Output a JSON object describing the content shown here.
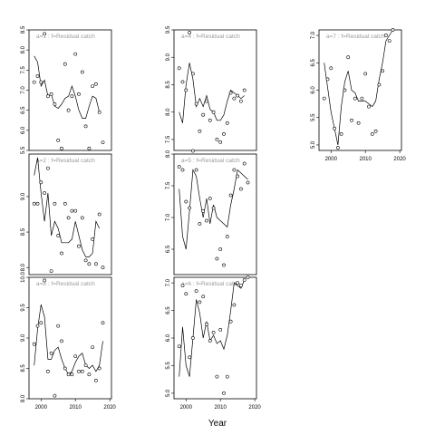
{
  "chart_data": {
    "type": "line",
    "xlabel": "Year",
    "panels": [
      {
        "title": "a=1  :  f=Residual catch",
        "ylim": [
          5.5,
          8.5
        ],
        "yticks": [
          5.5,
          6.0,
          6.5,
          7.0,
          7.5,
          8.0,
          8.5
        ],
        "xticks": [],
        "x": [
          1998,
          1999,
          2000,
          2001,
          2002,
          2003,
          2004,
          2005,
          2006,
          2007,
          2008,
          2009,
          2010,
          2011,
          2012,
          2013,
          2014,
          2015,
          2016,
          2017,
          2018,
          2019
        ],
        "fit": [
          7.85,
          7.7,
          7.1,
          7.25,
          6.85,
          6.9,
          6.6,
          6.55,
          6.65,
          6.8,
          6.85,
          7.1,
          6.85,
          6.5,
          6.3,
          6.3,
          6.6,
          6.85,
          6.8,
          6.45,
          null,
          null
        ],
        "points": [
          [
            1998,
            7.2
          ],
          [
            1999,
            7.35
          ],
          [
            2000,
            7.2
          ],
          [
            2001,
            8.4
          ],
          [
            2002,
            6.85
          ],
          [
            2003,
            6.9
          ],
          [
            2004,
            6.65
          ],
          [
            2005,
            5.75
          ],
          [
            2006,
            5.55
          ],
          [
            2007,
            7.65
          ],
          [
            2008,
            6.5
          ],
          [
            2009,
            6.85
          ],
          [
            2010,
            7.9
          ],
          [
            2011,
            6.9
          ],
          [
            2012,
            7.45
          ],
          [
            2013,
            6.1
          ],
          [
            2014,
            5.55
          ],
          [
            2015,
            7.1
          ],
          [
            2016,
            7.15
          ],
          [
            2017,
            6.45
          ],
          [
            2018,
            5.7
          ]
        ]
      },
      {
        "title": "a=4  :  f=Residual catch",
        "ylim": [
          7.3,
          9.5
        ],
        "yticks": [
          7.5,
          8.0,
          8.5,
          9.0,
          9.5
        ],
        "xticks": [],
        "x": [
          1998,
          1999,
          2000,
          2001,
          2002,
          2003,
          2004,
          2005,
          2006,
          2007,
          2008,
          2009,
          2010,
          2011,
          2012,
          2013,
          2014,
          2015,
          2016,
          2017,
          2018,
          2019
        ],
        "fit": [
          8.0,
          7.8,
          8.5,
          8.9,
          8.6,
          8.1,
          8.25,
          8.1,
          8.3,
          8.05,
          8.0,
          7.85,
          7.85,
          7.95,
          8.2,
          8.4,
          8.35,
          8.3,
          8.25,
          8.3,
          null,
          null
        ],
        "points": [
          [
            1998,
            8.8
          ],
          [
            1999,
            8.55
          ],
          [
            2000,
            8.4
          ],
          [
            2001,
            9.45
          ],
          [
            2002,
            8.7
          ],
          [
            2003,
            8.15
          ],
          [
            2004,
            7.65
          ],
          [
            2005,
            7.95
          ],
          [
            2006,
            8.2
          ],
          [
            2007,
            7.85
          ],
          [
            2008,
            8.0
          ],
          [
            2009,
            7.5
          ],
          [
            2010,
            7.45
          ],
          [
            2011,
            7.6
          ],
          [
            2012,
            7.8
          ],
          [
            2013,
            8.35
          ],
          [
            2014,
            8.25
          ],
          [
            2015,
            8.3
          ],
          [
            2016,
            8.2
          ],
          [
            2017,
            8.4
          ]
        ]
      },
      {
        "title": "a=7  :  f=Residual catch",
        "ylim": [
          4.9,
          7.1
        ],
        "yticks": [
          5.0,
          5.5,
          6.0,
          6.5,
          7.0
        ],
        "xticks": [
          2000,
          2010,
          2020
        ],
        "x": [
          1998,
          1999,
          2000,
          2001,
          2002,
          2003,
          2004,
          2005,
          2006,
          2007,
          2008,
          2009,
          2010,
          2011,
          2012,
          2013,
          2014,
          2015,
          2016,
          2017,
          2018,
          2019
        ],
        "fit": [
          6.5,
          6.05,
          5.6,
          5.3,
          5.0,
          5.7,
          6.15,
          6.35,
          6.0,
          5.95,
          5.8,
          5.8,
          5.8,
          5.75,
          5.7,
          5.8,
          6.2,
          6.5,
          6.9,
          7.0,
          7.1,
          null
        ],
        "points": [
          [
            1998,
            5.85
          ],
          [
            1999,
            6.2
          ],
          [
            2000,
            6.4
          ],
          [
            2001,
            5.3
          ],
          [
            2002,
            4.95
          ],
          [
            2003,
            5.2
          ],
          [
            2004,
            6.0
          ],
          [
            2005,
            6.6
          ],
          [
            2006,
            5.45
          ],
          [
            2007,
            5.85
          ],
          [
            2008,
            5.4
          ],
          [
            2009,
            5.85
          ],
          [
            2010,
            6.3
          ],
          [
            2011,
            5.7
          ],
          [
            2012,
            5.2
          ],
          [
            2013,
            5.25
          ],
          [
            2014,
            6.1
          ],
          [
            2015,
            6.35
          ],
          [
            2016,
            7.0
          ],
          [
            2017,
            6.9
          ],
          [
            2018,
            7.1
          ]
        ]
      },
      {
        "title": "a=2  :  f=Residual catch",
        "ylim": [
          7.9,
          9.6
        ],
        "yticks": [
          8.0,
          8.5,
          9.0
        ],
        "xticks": [],
        "x": [
          1998,
          1999,
          2000,
          2001,
          2002,
          2003,
          2004,
          2005,
          2006,
          2007,
          2008,
          2009,
          2010,
          2011,
          2012,
          2013,
          2014,
          2015,
          2016,
          2017,
          2018,
          2019
        ],
        "fit": [
          9.3,
          9.55,
          9.05,
          8.65,
          9.05,
          8.45,
          8.65,
          8.55,
          8.35,
          8.35,
          8.35,
          8.4,
          8.65,
          8.45,
          8.25,
          8.15,
          8.15,
          8.2,
          8.65,
          8.55,
          null,
          null
        ],
        "points": [
          [
            1998,
            8.9
          ],
          [
            1999,
            8.9
          ],
          [
            2000,
            9.2
          ],
          [
            2001,
            9.05
          ],
          [
            2002,
            9.4
          ],
          [
            2003,
            7.95
          ],
          [
            2004,
            8.9
          ],
          [
            2005,
            8.45
          ],
          [
            2006,
            8.2
          ],
          [
            2007,
            8.9
          ],
          [
            2008,
            8.7
          ],
          [
            2009,
            8.8
          ],
          [
            2010,
            8.8
          ],
          [
            2011,
            8.3
          ],
          [
            2012,
            8.7
          ],
          [
            2013,
            8.1
          ],
          [
            2014,
            8.05
          ],
          [
            2015,
            8.4
          ],
          [
            2016,
            8.05
          ],
          [
            2017,
            8.75
          ],
          [
            2018,
            8.0
          ]
        ]
      },
      {
        "title": "a=5  :  f=Residual catch",
        "ylim": [
          6.1,
          8.0
        ],
        "yticks": [
          6.5,
          7.0,
          7.5,
          8.0
        ],
        "xticks": [],
        "x": [
          1998,
          1999,
          2000,
          2001,
          2002,
          2003,
          2004,
          2005,
          2006,
          2007,
          2008,
          2009,
          2010,
          2011,
          2012,
          2013,
          2014,
          2015,
          2016,
          2017,
          2018,
          2019
        ],
        "fit": [
          7.45,
          6.7,
          6.5,
          7.1,
          7.75,
          7.65,
          7.3,
          7.0,
          7.3,
          6.9,
          7.2,
          7.0,
          6.95,
          6.9,
          6.85,
          7.2,
          7.45,
          7.75,
          7.7,
          7.65,
          7.6,
          null
        ],
        "points": [
          [
            1998,
            7.8
          ],
          [
            1999,
            7.75
          ],
          [
            2000,
            7.25
          ],
          [
            2001,
            7.15
          ],
          [
            2002,
            8.05
          ],
          [
            2003,
            7.75
          ],
          [
            2004,
            6.9
          ],
          [
            2005,
            7.1
          ],
          [
            2006,
            6.95
          ],
          [
            2007,
            7.3
          ],
          [
            2008,
            7.15
          ],
          [
            2009,
            6.35
          ],
          [
            2010,
            6.5
          ],
          [
            2011,
            6.25
          ],
          [
            2012,
            6.7
          ],
          [
            2013,
            7.35
          ],
          [
            2014,
            7.75
          ],
          [
            2015,
            7.65
          ],
          [
            2016,
            7.45
          ],
          [
            2017,
            7.85
          ],
          [
            2018,
            7.55
          ]
        ]
      },
      {
        "title": "a=8  :  f=Residual catch",
        "ylim": [
          8.0,
          10.0
        ],
        "yticks": [
          8.0,
          8.5,
          9.0,
          9.5,
          10.0
        ],
        "xticks": [
          2000,
          2010,
          2020
        ],
        "x": [
          1998,
          1999,
          2000,
          2001,
          2002,
          2003,
          2004,
          2005,
          2006,
          2007,
          2008,
          2009,
          2010,
          2011,
          2012,
          2013,
          2014,
          2015,
          2016,
          2017,
          2018,
          2019
        ],
        "fit": [
          8.55,
          9.15,
          9.55,
          9.35,
          8.65,
          8.65,
          8.8,
          8.85,
          8.65,
          8.5,
          8.4,
          8.45,
          8.6,
          8.7,
          8.75,
          8.55,
          8.5,
          8.55,
          8.45,
          8.55,
          8.95,
          null
        ],
        "points": [
          [
            1998,
            8.9
          ],
          [
            1999,
            9.2
          ],
          [
            2000,
            9.25
          ],
          [
            2001,
            9.95
          ],
          [
            2002,
            8.45
          ],
          [
            2003,
            8.75
          ],
          [
            2004,
            8.05
          ],
          [
            2005,
            9.2
          ],
          [
            2006,
            8.95
          ],
          [
            2007,
            8.5
          ],
          [
            2008,
            8.4
          ],
          [
            2009,
            8.4
          ],
          [
            2010,
            8.7
          ],
          [
            2011,
            8.45
          ],
          [
            2012,
            8.45
          ],
          [
            2013,
            8.55
          ],
          [
            2014,
            8.4
          ],
          [
            2015,
            8.85
          ],
          [
            2016,
            8.3
          ],
          [
            2017,
            8.5
          ],
          [
            2018,
            9.25
          ]
        ]
      },
      {
        "title": "a=6  :  f=Residual catch",
        "ylim": [
          4.9,
          7.1
        ],
        "yticks": [
          5.0,
          5.5,
          6.0,
          6.5,
          7.0
        ],
        "xticks": [
          2000,
          2010,
          2020
        ],
        "x": [
          1998,
          1999,
          2000,
          2001,
          2002,
          2003,
          2004,
          2005,
          2006,
          2007,
          2008,
          2009,
          2010,
          2011,
          2012,
          2013,
          2014,
          2015,
          2016,
          2017,
          2018,
          2019
        ],
        "fit": [
          5.3,
          6.2,
          5.5,
          5.3,
          6.0,
          6.7,
          6.45,
          6.0,
          6.3,
          5.95,
          6.05,
          5.9,
          5.95,
          5.8,
          6.05,
          6.5,
          7.0,
          6.95,
          6.9,
          7.05,
          null,
          null
        ],
        "points": [
          [
            1998,
            5.85
          ],
          [
            1999,
            6.95
          ],
          [
            2000,
            6.8
          ],
          [
            2001,
            5.65
          ],
          [
            2002,
            6.0
          ],
          [
            2003,
            6.85
          ],
          [
            2004,
            6.65
          ],
          [
            2005,
            6.75
          ],
          [
            2006,
            6.25
          ],
          [
            2007,
            5.95
          ],
          [
            2008,
            6.1
          ],
          [
            2009,
            5.3
          ],
          [
            2010,
            6.15
          ],
          [
            2011,
            5.0
          ],
          [
            2012,
            5.3
          ],
          [
            2013,
            6.3
          ],
          [
            2014,
            6.6
          ],
          [
            2015,
            7.0
          ],
          [
            2016,
            6.95
          ],
          [
            2017,
            7.05
          ],
          [
            2018,
            7.1
          ]
        ]
      }
    ]
  }
}
